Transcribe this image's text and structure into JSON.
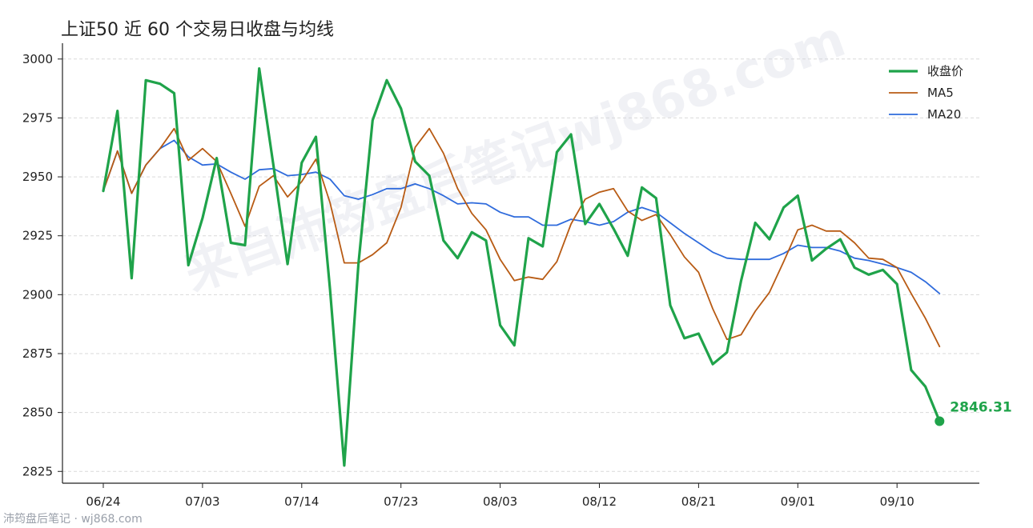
{
  "chart_data": {
    "type": "line",
    "title": "上证50 近 60 个交易日收盘与均线",
    "xlabel": "",
    "ylabel": "",
    "ylim": [
      2820,
      3004
    ],
    "yticks": [
      2825,
      2850,
      2875,
      2900,
      2925,
      2950,
      2975,
      3000
    ],
    "x_tick_labels": [
      {
        "index": 0,
        "label": "06/24"
      },
      {
        "index": 7,
        "label": "07/03"
      },
      {
        "index": 14,
        "label": "07/14"
      },
      {
        "index": 21,
        "label": "07/23"
      },
      {
        "index": 28,
        "label": "08/03"
      },
      {
        "index": 35,
        "label": "08/12"
      },
      {
        "index": 42,
        "label": "08/21"
      },
      {
        "index": 49,
        "label": "09/01"
      },
      {
        "index": 56,
        "label": "09/10"
      }
    ],
    "grid": "horizontal-dashed",
    "legend_position": "top-right",
    "colors": {
      "close": "#1fa34a",
      "ma5": "#b85b14",
      "ma20": "#2f6bdc"
    },
    "series": [
      {
        "key": "close",
        "name": "收盘价",
        "values": [
          2944,
          2978,
          2907,
          2991,
          2989.5,
          2985.5,
          2912.5,
          2932.5,
          2958,
          2922,
          2921,
          2996,
          2955,
          2913,
          2956,
          2967,
          2902,
          2827.5,
          2913,
          2974,
          2991,
          2979,
          2956.5,
          2950.5,
          2923,
          2915.5,
          2926.5,
          2923,
          2887,
          2878.5,
          2924,
          2920.5,
          2960.5,
          2968,
          2930,
          2938.5,
          2928,
          2916.5,
          2945.5,
          2941,
          2895.5,
          2881.5,
          2883.5,
          2870.5,
          2875.5,
          2906,
          2930.5,
          2923.5,
          2937,
          2942,
          2914.5,
          2919.5,
          2923.5,
          2911.5,
          2908.5,
          2910.5,
          2904.5,
          2868,
          2861,
          2846.31
        ]
      },
      {
        "key": "ma5",
        "name": "MA5",
        "values": [
          2944,
          2961,
          2943,
          2955,
          2962,
          2970.5,
          2957,
          2962,
          2956.5,
          2943,
          2929,
          2946,
          2950.5,
          2941.5,
          2948,
          2957.5,
          2939,
          2913.5,
          2913.5,
          2917,
          2922,
          2937,
          2962.5,
          2970.5,
          2960,
          2945,
          2934.5,
          2927.5,
          2915,
          2906,
          2907.5,
          2906.5,
          2914,
          2930,
          2940.5,
          2943.5,
          2945,
          2935.5,
          2931.5,
          2934,
          2925.5,
          2916,
          2909.5,
          2894,
          2881,
          2883,
          2893,
          2901,
          2914,
          2927.5,
          2929.5,
          2927,
          2927,
          2922,
          2915.5,
          2915,
          2911.5,
          2900.5,
          2890,
          2878
        ]
      },
      {
        "key": "ma20",
        "name": "MA20",
        "values": [
          2944,
          2961,
          2943,
          2955,
          2962,
          2965.5,
          2958.5,
          2955,
          2955.5,
          2952,
          2949,
          2953,
          2953.5,
          2950.5,
          2951,
          2952,
          2949,
          2942,
          2940.5,
          2942.5,
          2945,
          2945,
          2947,
          2945,
          2942,
          2938.5,
          2939,
          2938.5,
          2935,
          2933,
          2933,
          2929.5,
          2929.5,
          2932,
          2931,
          2929.5,
          2931,
          2935,
          2937,
          2935,
          2930.5,
          2926,
          2922,
          2918,
          2915.5,
          2915,
          2915,
          2915,
          2917.5,
          2921,
          2920,
          2920,
          2918.5,
          2915.5,
          2914.5,
          2913,
          2911.5,
          2909.5,
          2905.5,
          2900.5
        ]
      }
    ],
    "end_label": {
      "series": "close",
      "text": "2846.31"
    }
  },
  "watermark": {
    "text": "来自沛筠盘后笔记wj868.com"
  },
  "footer": {
    "text": "沛筠盘后笔记 · wj868.com"
  }
}
